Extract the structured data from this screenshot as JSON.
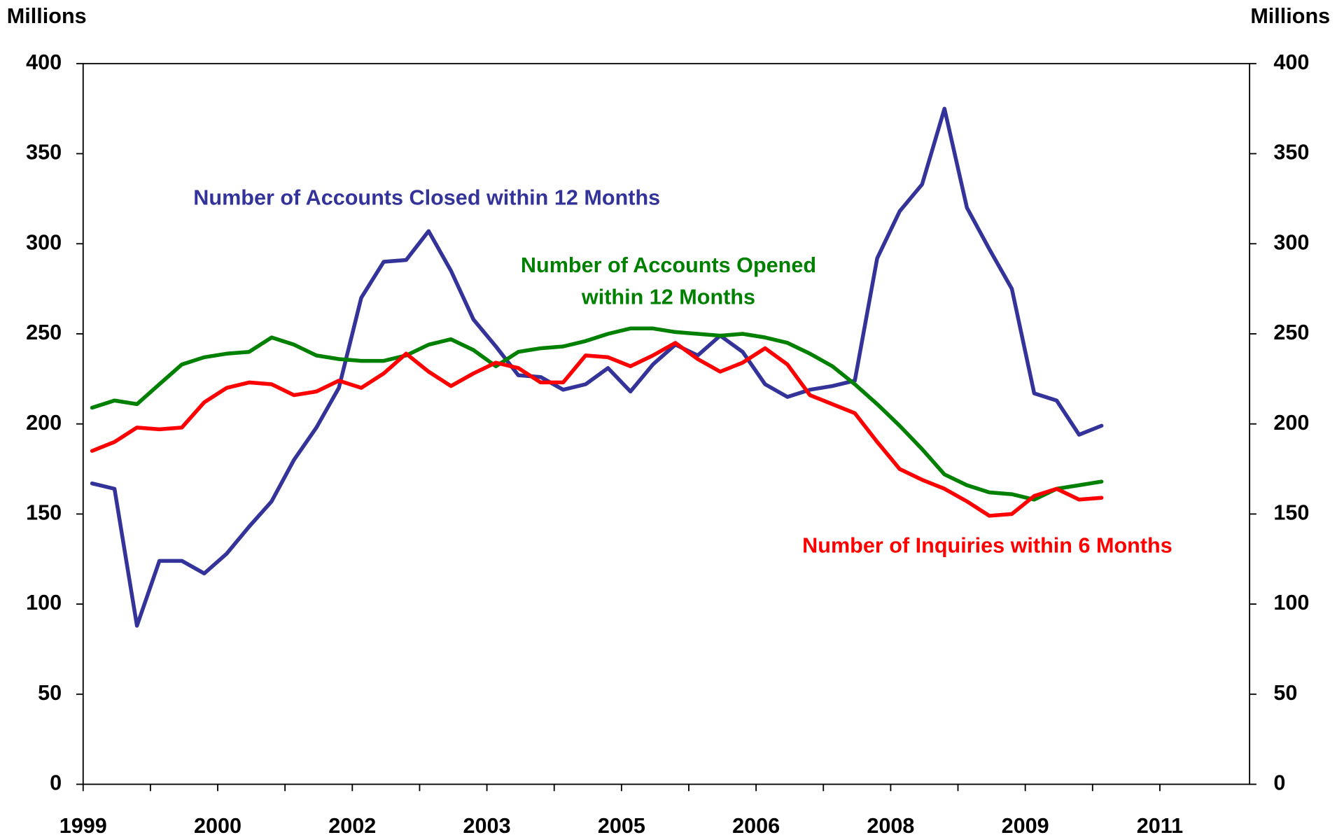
{
  "chart_data": {
    "type": "line",
    "y_label": "Millions",
    "y2_label": "Millions",
    "xlim": [
      1999,
      2012
    ],
    "xticks": [
      {
        "value": 1999,
        "label": "1999"
      },
      {
        "value": 2000.5,
        "label": "2000"
      },
      {
        "value": 2002,
        "label": "2002"
      },
      {
        "value": 2003.5,
        "label": "2003"
      },
      {
        "value": 2005,
        "label": "2005"
      },
      {
        "value": 2006.5,
        "label": "2006"
      },
      {
        "value": 2008,
        "label": "2008"
      },
      {
        "value": 2009.5,
        "label": "2009"
      },
      {
        "value": 2011,
        "label": "2011"
      }
    ],
    "ylim": [
      0,
      400
    ],
    "yticks": [
      0,
      50,
      100,
      150,
      200,
      250,
      300,
      350,
      400
    ],
    "y2lim": [
      0,
      400
    ],
    "y2ticks": [
      0,
      50,
      100,
      150,
      200,
      250,
      300,
      350,
      400
    ],
    "x": [
      1999.1,
      1999.35,
      1999.6,
      1999.85,
      2000.1,
      2000.35,
      2000.6,
      2000.85,
      2001.1,
      2001.35,
      2001.6,
      2001.85,
      2002.1,
      2002.35,
      2002.6,
      2002.85,
      2003.1,
      2003.35,
      2003.6,
      2003.85,
      2004.1,
      2004.35,
      2004.6,
      2004.85,
      2005.1,
      2005.35,
      2005.6,
      2005.85,
      2006.1,
      2006.35,
      2006.6,
      2006.85,
      2007.1,
      2007.35,
      2007.6,
      2007.85,
      2008.1,
      2008.35,
      2008.6,
      2008.85,
      2009.1,
      2009.35,
      2009.6,
      2009.85,
      2010.1,
      2010.35
    ],
    "series": [
      {
        "label_lines": [
          "Number of Accounts Closed within 12 Months"
        ],
        "color": "#333399",
        "values": [
          167,
          164,
          88,
          124,
          124,
          117,
          128,
          143,
          157,
          180,
          198,
          220,
          270,
          290,
          291,
          307,
          285,
          258,
          243,
          227,
          226,
          219,
          222,
          231,
          218,
          233,
          244,
          238,
          249,
          240,
          222,
          215,
          219,
          221,
          224,
          292,
          318,
          333,
          375,
          320,
          297,
          275,
          217,
          213,
          194,
          199
        ]
      },
      {
        "label_lines": [
          "Number of Accounts Opened",
          "within 12 Months"
        ],
        "color": "#008000",
        "values": [
          209,
          213,
          211,
          222,
          233,
          237,
          239,
          240,
          248,
          244,
          238,
          236,
          235,
          235,
          238,
          244,
          247,
          241,
          232,
          240,
          242,
          243,
          246,
          250,
          253,
          253,
          251,
          250,
          249,
          250,
          248,
          245,
          239,
          232,
          222,
          211,
          199,
          186,
          172,
          166,
          162,
          161,
          158,
          164,
          166,
          168
        ]
      },
      {
        "label_lines": [
          "Number of Inquiries within 6 Months"
        ],
        "color": "#ff0000",
        "values": [
          185,
          190,
          198,
          197,
          198,
          212,
          220,
          223,
          222,
          216,
          218,
          224,
          220,
          228,
          239,
          229,
          221,
          228,
          234,
          231,
          223,
          223,
          238,
          237,
          232,
          238,
          245,
          236,
          229,
          234,
          242,
          233,
          216,
          211,
          206,
          190,
          175,
          169,
          164,
          157,
          149,
          150,
          160,
          164,
          158,
          159
        ]
      }
    ]
  }
}
